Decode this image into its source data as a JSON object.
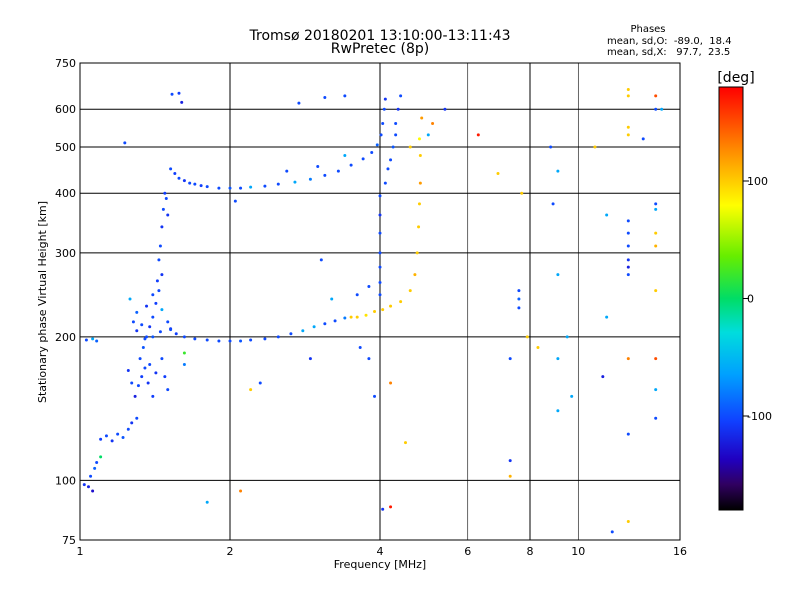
{
  "chart_data": {
    "type": "scatter",
    "title": "Tromsø 20180201 13:10:00-13:11:43",
    "subtitle": "RwPretec (8p)",
    "xlabel": "Frequency [MHz]",
    "ylabel": "Stationary phase Virtual Height [km]",
    "x_scale": "log2",
    "y_scale": "log",
    "xlim": [
      1,
      16
    ],
    "ylim": [
      75,
      750
    ],
    "x_ticks": [
      1,
      2,
      4,
      6,
      8,
      10,
      16
    ],
    "x_major_lines": [
      2,
      4,
      8
    ],
    "x_minor_lines": [
      6,
      10
    ],
    "y_ticks": [
      75,
      100,
      200,
      300,
      400,
      500,
      600,
      750
    ],
    "grid": true,
    "phases_box": {
      "title": "Phases",
      "line_o": "mean, sd,O:  -89.0,  18.4",
      "line_x": "mean, sd,X:   97.7,  23.5"
    },
    "colorbar": {
      "label": "[deg]",
      "range": [
        -180,
        180
      ],
      "ticks": [
        100,
        0,
        -100
      ]
    },
    "points": [
      [
        1.02,
        98,
        -110
      ],
      [
        1.05,
        102,
        -100
      ],
      [
        1.07,
        106,
        -90
      ],
      [
        1.04,
        97,
        -120
      ],
      [
        1.08,
        109,
        -100
      ],
      [
        1.06,
        95,
        -130
      ],
      [
        1.1,
        112,
        0
      ],
      [
        1.03,
        197,
        -100
      ],
      [
        1.06,
        198,
        -60
      ],
      [
        1.08,
        196,
        -90
      ],
      [
        1.1,
        122,
        -105
      ],
      [
        1.13,
        124,
        -100
      ],
      [
        1.16,
        121,
        -110
      ],
      [
        1.19,
        125,
        -100
      ],
      [
        1.22,
        123,
        -95
      ],
      [
        1.25,
        128,
        -100
      ],
      [
        1.27,
        132,
        -110
      ],
      [
        1.3,
        135,
        -100
      ],
      [
        1.29,
        150,
        -120
      ],
      [
        1.31,
        158,
        -100
      ],
      [
        1.33,
        165,
        -105
      ],
      [
        1.35,
        172,
        -100
      ],
      [
        1.37,
        160,
        -110
      ],
      [
        1.32,
        180,
        -100
      ],
      [
        1.34,
        190,
        -95
      ],
      [
        1.36,
        200,
        -100
      ],
      [
        1.38,
        210,
        -110
      ],
      [
        1.4,
        220,
        -100
      ],
      [
        1.42,
        235,
        -105
      ],
      [
        1.44,
        250,
        -100
      ],
      [
        1.46,
        270,
        -110
      ],
      [
        1.44,
        290,
        -100
      ],
      [
        1.45,
        310,
        -100
      ],
      [
        1.46,
        340,
        -110
      ],
      [
        1.47,
        370,
        -100
      ],
      [
        1.48,
        400,
        -105
      ],
      [
        1.49,
        390,
        -100
      ],
      [
        1.5,
        360,
        -110
      ],
      [
        1.28,
        215,
        -100
      ],
      [
        1.3,
        225,
        -90
      ],
      [
        1.33,
        212,
        -100
      ],
      [
        1.36,
        232,
        -110
      ],
      [
        1.4,
        245,
        -100
      ],
      [
        1.43,
        262,
        -105
      ],
      [
        1.46,
        228,
        -60
      ],
      [
        1.5,
        215,
        -100
      ],
      [
        1.52,
        208,
        -110
      ],
      [
        1.45,
        205,
        -100
      ],
      [
        1.4,
        200,
        -95
      ],
      [
        1.35,
        198,
        -100
      ],
      [
        1.3,
        206,
        -110
      ],
      [
        1.26,
        240,
        -60
      ],
      [
        1.38,
        175,
        -100
      ],
      [
        1.42,
        168,
        -110
      ],
      [
        1.46,
        180,
        -100
      ],
      [
        1.48,
        165,
        -105
      ],
      [
        1.5,
        155,
        -100
      ],
      [
        1.25,
        170,
        -110
      ],
      [
        1.27,
        160,
        -100
      ],
      [
        1.4,
        150,
        -105
      ],
      [
        1.52,
        450,
        -100
      ],
      [
        1.55,
        440,
        -105
      ],
      [
        1.58,
        430,
        -100
      ],
      [
        1.62,
        425,
        -110
      ],
      [
        1.66,
        420,
        -100
      ],
      [
        1.7,
        418,
        -100
      ],
      [
        1.75,
        415,
        -105
      ],
      [
        1.8,
        413,
        -100
      ],
      [
        1.9,
        410,
        -100
      ],
      [
        2.0,
        410,
        -95
      ],
      [
        2.1,
        410,
        -100
      ],
      [
        2.2,
        412,
        -60
      ],
      [
        2.35,
        414,
        -100
      ],
      [
        2.5,
        418,
        -100
      ],
      [
        2.7,
        422,
        -60
      ],
      [
        2.9,
        428,
        -80
      ],
      [
        3.1,
        436,
        -100
      ],
      [
        3.3,
        445,
        -100
      ],
      [
        3.5,
        458,
        -100
      ],
      [
        3.7,
        472,
        -100
      ],
      [
        3.85,
        487,
        -100
      ],
      [
        3.95,
        505,
        -90
      ],
      [
        4.02,
        530,
        -100
      ],
      [
        4.05,
        560,
        -100
      ],
      [
        4.08,
        600,
        -100
      ],
      [
        4.1,
        630,
        -110
      ],
      [
        2.6,
        445,
        -100
      ],
      [
        3.0,
        455,
        -100
      ],
      [
        3.4,
        480,
        -60
      ],
      [
        1.53,
        645,
        -100
      ],
      [
        1.58,
        648,
        -105
      ],
      [
        1.6,
        620,
        -120
      ],
      [
        2.75,
        618,
        -100
      ],
      [
        3.1,
        635,
        -100
      ],
      [
        3.4,
        640,
        -100
      ],
      [
        1.23,
        510,
        -100
      ],
      [
        1.52,
        207,
        -100
      ],
      [
        1.56,
        203,
        -105
      ],
      [
        1.62,
        200,
        -100
      ],
      [
        1.7,
        198,
        -100
      ],
      [
        1.8,
        197,
        -100
      ],
      [
        1.9,
        196,
        -100
      ],
      [
        2.0,
        196,
        -100
      ],
      [
        2.1,
        196,
        -95
      ],
      [
        2.2,
        197,
        -100
      ],
      [
        2.35,
        198,
        -100
      ],
      [
        2.5,
        200,
        -100
      ],
      [
        2.65,
        203,
        -100
      ],
      [
        2.8,
        206,
        -60
      ],
      [
        2.95,
        210,
        -60
      ],
      [
        3.1,
        213,
        -100
      ],
      [
        3.25,
        216,
        -100
      ],
      [
        3.4,
        219,
        -80
      ],
      [
        3.5,
        220,
        100
      ],
      [
        3.6,
        220,
        100
      ],
      [
        3.75,
        222,
        90
      ],
      [
        3.9,
        226,
        100
      ],
      [
        4.05,
        228,
        100
      ],
      [
        4.2,
        232,
        100
      ],
      [
        4.4,
        237,
        100
      ],
      [
        4.6,
        250,
        100
      ],
      [
        4.7,
        270,
        110
      ],
      [
        4.75,
        300,
        100
      ],
      [
        4.78,
        340,
        100
      ],
      [
        4.8,
        380,
        100
      ],
      [
        4.82,
        420,
        120
      ],
      [
        4.82,
        480,
        100
      ],
      [
        4.8,
        520,
        80
      ],
      [
        4.85,
        575,
        120
      ],
      [
        4.0,
        245,
        -100
      ],
      [
        4.0,
        260,
        -100
      ],
      [
        4.0,
        280,
        -100
      ],
      [
        4.0,
        300,
        -100
      ],
      [
        4.0,
        330,
        -100
      ],
      [
        4.0,
        360,
        -110
      ],
      [
        4.0,
        395,
        -100
      ],
      [
        4.1,
        420,
        -100
      ],
      [
        4.15,
        450,
        -100
      ],
      [
        4.2,
        470,
        -100
      ],
      [
        4.25,
        500,
        -95
      ],
      [
        4.3,
        530,
        -100
      ],
      [
        4.3,
        560,
        -100
      ],
      [
        4.35,
        600,
        -110
      ],
      [
        4.4,
        640,
        -100
      ],
      [
        3.05,
        290,
        -100
      ],
      [
        3.2,
        240,
        -60
      ],
      [
        3.6,
        245,
        -100
      ],
      [
        3.8,
        255,
        -100
      ],
      [
        2.9,
        180,
        -110
      ],
      [
        2.3,
        160,
        -100
      ],
      [
        2.2,
        155,
        100
      ],
      [
        2.1,
        95,
        130
      ],
      [
        2.05,
        385,
        -100
      ],
      [
        3.65,
        190,
        -100
      ],
      [
        3.8,
        180,
        -100
      ],
      [
        3.9,
        150,
        -100
      ],
      [
        4.05,
        87,
        -110
      ],
      [
        4.2,
        88,
        170
      ],
      [
        4.2,
        160,
        130
      ],
      [
        4.5,
        120,
        100
      ],
      [
        4.6,
        500,
        100
      ],
      [
        5.0,
        530,
        -60
      ],
      [
        5.1,
        560,
        130
      ],
      [
        5.4,
        600,
        -110
      ],
      [
        6.3,
        530,
        170
      ],
      [
        6.9,
        440,
        100
      ],
      [
        7.7,
        400,
        100
      ],
      [
        7.6,
        250,
        -100
      ],
      [
        7.6,
        230,
        -100
      ],
      [
        7.6,
        240,
        -90
      ],
      [
        7.3,
        180,
        -100
      ],
      [
        7.3,
        110,
        -110
      ],
      [
        7.3,
        102,
        110
      ],
      [
        7.9,
        200,
        100
      ],
      [
        8.3,
        190,
        100
      ],
      [
        8.8,
        500,
        -100
      ],
      [
        8.9,
        380,
        -100
      ],
      [
        9.1,
        445,
        -60
      ],
      [
        9.1,
        270,
        -60
      ],
      [
        9.1,
        180,
        -60
      ],
      [
        9.1,
        140,
        -60
      ],
      [
        9.5,
        200,
        -60
      ],
      [
        9.7,
        150,
        -60
      ],
      [
        10.8,
        500,
        100
      ],
      [
        11.2,
        165,
        -120
      ],
      [
        11.4,
        360,
        -60
      ],
      [
        11.4,
        220,
        -60
      ],
      [
        11.7,
        78,
        -100
      ],
      [
        12.6,
        640,
        100
      ],
      [
        12.6,
        660,
        100
      ],
      [
        12.6,
        550,
        100
      ],
      [
        12.6,
        530,
        100
      ],
      [
        12.6,
        350,
        -100
      ],
      [
        12.6,
        330,
        -100
      ],
      [
        12.6,
        310,
        -100
      ],
      [
        12.6,
        290,
        -110
      ],
      [
        12.6,
        280,
        -120
      ],
      [
        12.6,
        270,
        -100
      ],
      [
        12.6,
        180,
        130
      ],
      [
        12.6,
        125,
        -100
      ],
      [
        12.6,
        82,
        100
      ],
      [
        14.3,
        640,
        150
      ],
      [
        14.3,
        600,
        -100
      ],
      [
        14.3,
        380,
        -100
      ],
      [
        14.3,
        370,
        -60
      ],
      [
        14.3,
        330,
        100
      ],
      [
        14.3,
        310,
        110
      ],
      [
        14.3,
        250,
        100
      ],
      [
        14.3,
        180,
        150
      ],
      [
        14.3,
        155,
        -60
      ],
      [
        14.3,
        135,
        -100
      ],
      [
        14.7,
        600,
        -60
      ],
      [
        13.5,
        520,
        -100
      ],
      [
        1.8,
        90,
        -60
      ],
      [
        1.62,
        175,
        -80
      ],
      [
        1.62,
        185,
        20
      ]
    ]
  }
}
